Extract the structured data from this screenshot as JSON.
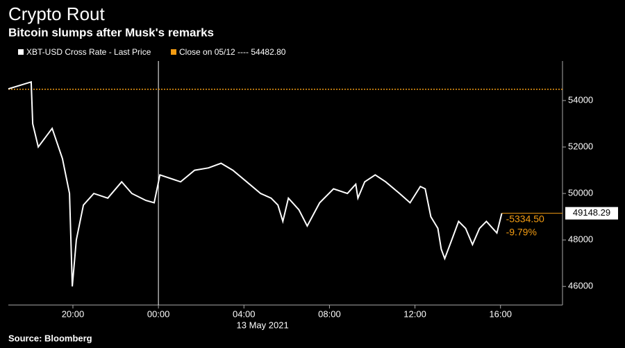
{
  "chart_data": {
    "type": "line",
    "title": "Crypto Rout",
    "subtitle": "Bitcoin slumps after Musk's remarks",
    "x_label": "13 May 2021",
    "source": "Source: Bloomberg",
    "x": [
      -7.02,
      -5.95,
      -5.88,
      -5.62,
      -4.97,
      -4.49,
      -4.16,
      -4.03,
      -3.84,
      -3.51,
      -3.02,
      -2.37,
      -1.72,
      -1.24,
      -0.59,
      -0.2,
      0.07,
      0.72,
      1.04,
      1.69,
      2.34,
      2.93,
      3.48,
      4.13,
      4.78,
      5.27,
      5.59,
      5.82,
      6.08,
      6.57,
      6.96,
      7.54,
      8.19,
      8.84,
      9.23,
      9.33,
      9.65,
      10.14,
      10.63,
      11.28,
      11.77,
      12.25,
      12.48,
      12.74,
      13.07,
      13.23,
      13.39,
      13.72,
      14.04,
      14.37,
      14.69,
      15.02,
      15.34,
      15.83,
      16.06
    ],
    "series": [
      {
        "name": "XBT-USD Cross Rate - Last Price",
        "color": "#ffffff",
        "values": [
          54500,
          54800,
          53000,
          52000,
          52800,
          51500,
          50000,
          46000,
          48000,
          49500,
          50000,
          49800,
          50500,
          50000,
          49700,
          49600,
          50800,
          50600,
          50500,
          51000,
          51100,
          51300,
          51000,
          50500,
          50000,
          49800,
          49500,
          48800,
          49800,
          49300,
          48600,
          49600,
          50200,
          50000,
          50400,
          49800,
          50500,
          50800,
          50500,
          50000,
          49600,
          50300,
          50200,
          49000,
          48500,
          47600,
          47200,
          48000,
          48800,
          48500,
          47800,
          48500,
          48800,
          48300,
          49148.29
        ]
      }
    ],
    "reference_line": {
      "name": "Close on 05/12 ---- 54482.80",
      "value": 54482.8,
      "color": "#f39c12"
    },
    "annotations": [
      "-5334.50",
      "-9.79%"
    ],
    "day_divider_x": 0,
    "xlim": [
      -7.02,
      18.9
    ],
    "xticks": [
      {
        "value": -4,
        "label": "20:00"
      },
      {
        "value": 0,
        "label": "00:00"
      },
      {
        "value": 4,
        "label": "04:00"
      },
      {
        "value": 8,
        "label": "08:00"
      },
      {
        "value": 12,
        "label": "12:00"
      },
      {
        "value": 16,
        "label": "16:00"
      }
    ],
    "ylim": [
      45200,
      55700
    ],
    "yticks": [
      46000,
      48000,
      50000,
      52000,
      54000
    ]
  }
}
